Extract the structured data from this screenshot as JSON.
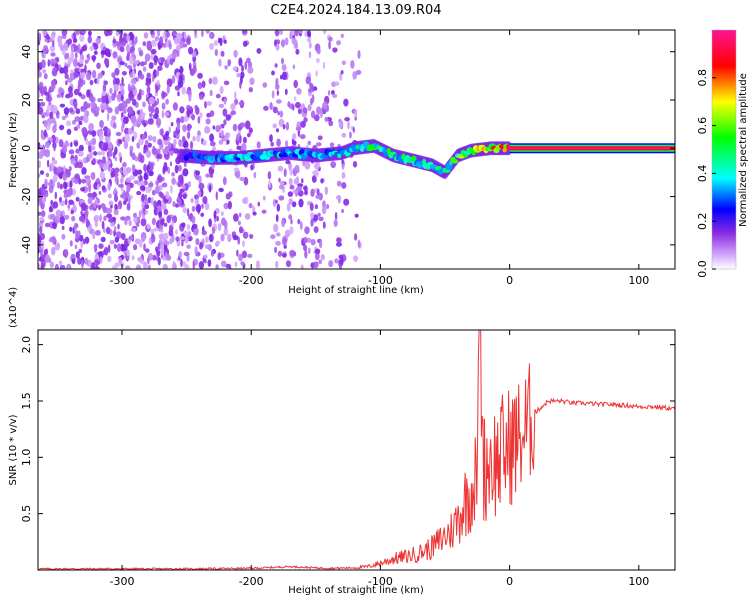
{
  "title": "C2E4.2024.184.13.09.R04",
  "chart_data": [
    {
      "type": "heatmap",
      "xlabel": "Height of straight line (km)",
      "ylabel": "Frequency (Hz)",
      "xlim": [
        -365,
        128
      ],
      "ylim": [
        -50,
        49
      ],
      "xticks": [
        -300,
        -200,
        -100,
        0,
        100
      ],
      "yticks": [
        -40,
        -20,
        0,
        20,
        40
      ],
      "colorbar": {
        "label": "Normalized spectral amplitude",
        "range": [
          0,
          1
        ],
        "ticks": [
          0.0,
          0.2,
          0.4,
          0.6,
          0.8
        ],
        "tick_labels": [
          "0.0",
          "0.2",
          "0.4",
          "0.6",
          "0.8"
        ],
        "colors": [
          "#ffffff",
          "#d9b3ff",
          "#8a2be2",
          "#0000ff",
          "#00ffff",
          "#00ff00",
          "#ffff00",
          "#ff0000",
          "#ff1493"
        ]
      },
      "ridge": [
        {
          "x": -255,
          "y": -3,
          "amp": 0.25
        },
        {
          "x": -230,
          "y": -4,
          "amp": 0.35
        },
        {
          "x": -210,
          "y": -4,
          "amp": 0.4
        },
        {
          "x": -190,
          "y": -3,
          "amp": 0.4
        },
        {
          "x": -170,
          "y": -2,
          "amp": 0.4
        },
        {
          "x": -150,
          "y": -3,
          "amp": 0.35
        },
        {
          "x": -130,
          "y": -2,
          "amp": 0.4
        },
        {
          "x": -120,
          "y": 0,
          "amp": 0.45
        },
        {
          "x": -105,
          "y": 1,
          "amp": 0.55
        },
        {
          "x": -90,
          "y": -3,
          "amp": 0.5
        },
        {
          "x": -75,
          "y": -5,
          "amp": 0.5
        },
        {
          "x": -60,
          "y": -7,
          "amp": 0.5
        },
        {
          "x": -50,
          "y": -10,
          "amp": 0.45
        },
        {
          "x": -40,
          "y": -3,
          "amp": 0.6
        },
        {
          "x": -30,
          "y": -1,
          "amp": 0.7
        },
        {
          "x": -15,
          "y": 0,
          "amp": 0.8
        },
        {
          "x": 0,
          "y": 0,
          "amp": 0.9
        },
        {
          "x": 50,
          "y": 0,
          "amp": 0.95
        },
        {
          "x": 128,
          "y": 0,
          "amp": 0.95
        }
      ]
    },
    {
      "type": "line",
      "xlabel": "Height of straight line (km)",
      "ylabel": "SNR (10 * v/v)",
      "y_multiplier": "(x10^4)",
      "xlim": [
        -365,
        128
      ],
      "ylim": [
        0,
        2.13
      ],
      "xticks": [
        -300,
        -200,
        -100,
        0,
        100
      ],
      "yticks": [
        0.5,
        1.0,
        1.5,
        2.0
      ],
      "ytick_labels": [
        "0.5",
        "1.0",
        "1.5",
        "2.0"
      ],
      "line_color": "#ee3333",
      "series": [
        {
          "x": [
            -365,
            -300,
            -250,
            -200,
            -170,
            -140,
            -120,
            -110,
            -100,
            -90,
            -80,
            -70,
            -60,
            -50,
            -45,
            -40,
            -35,
            -30,
            -25,
            -23,
            -20,
            -15,
            -10,
            -5,
            0,
            5,
            10,
            15,
            20,
            25,
            30,
            35,
            40,
            50,
            60,
            70,
            80,
            90,
            100,
            110,
            120,
            128
          ],
          "y": [
            0.01,
            0.01,
            0.01,
            0.015,
            0.03,
            0.015,
            0.02,
            0.03,
            0.06,
            0.1,
            0.12,
            0.15,
            0.2,
            0.3,
            0.35,
            0.45,
            0.6,
            0.7,
            0.85,
            2.13,
            0.9,
            1.0,
            0.95,
            1.05,
            1.1,
            1.15,
            1.2,
            1.3,
            1.4,
            1.45,
            1.5,
            1.5,
            1.5,
            1.48,
            1.48,
            1.47,
            1.47,
            1.46,
            1.45,
            1.45,
            1.44,
            1.43
          ]
        }
      ]
    }
  ]
}
